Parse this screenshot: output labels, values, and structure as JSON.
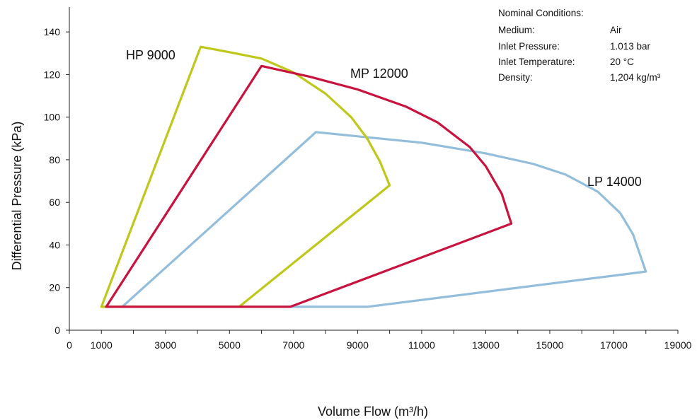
{
  "chart_data": {
    "type": "line",
    "title": "",
    "xlabel": "Volume Flow (m³/h)",
    "ylabel": "Differential Pressure (kPa)",
    "xlim": [
      0,
      19000
    ],
    "ylim": [
      0,
      150
    ],
    "xticks": [
      0,
      1000,
      3000,
      5000,
      7000,
      9000,
      11000,
      13000,
      15000,
      17000,
      19000
    ],
    "xminor": [
      2000,
      4000,
      6000,
      8000,
      10000,
      12000,
      14000,
      16000,
      18000
    ],
    "yticks": [
      0,
      20,
      40,
      60,
      80,
      100,
      120,
      140
    ],
    "grid": false,
    "series": [
      {
        "name": "HP 9000",
        "color": "#bfc81a",
        "points": [
          [
            1000,
            11
          ],
          [
            4100,
            133
          ],
          [
            5000,
            130.5
          ],
          [
            6000,
            127.5
          ],
          [
            7000,
            121
          ],
          [
            8000,
            111
          ],
          [
            8800,
            100
          ],
          [
            9300,
            90
          ],
          [
            9700,
            79
          ],
          [
            10000,
            68
          ],
          [
            5300,
            11
          ],
          [
            1000,
            11
          ]
        ]
      },
      {
        "name": "MP 12000",
        "color": "#c8133e",
        "points": [
          [
            1150,
            11
          ],
          [
            6000,
            124
          ],
          [
            7500,
            119
          ],
          [
            9000,
            113
          ],
          [
            10500,
            105
          ],
          [
            11500,
            97.5
          ],
          [
            12500,
            86
          ],
          [
            13000,
            77
          ],
          [
            13500,
            64
          ],
          [
            13800,
            50
          ],
          [
            6900,
            11
          ],
          [
            1150,
            11
          ]
        ]
      },
      {
        "name": "LP 14000",
        "color": "#92bedc",
        "points": [
          [
            1650,
            11
          ],
          [
            7700,
            93
          ],
          [
            9000,
            91
          ],
          [
            11000,
            88
          ],
          [
            13000,
            83
          ],
          [
            14500,
            78
          ],
          [
            15500,
            73
          ],
          [
            16500,
            65
          ],
          [
            17200,
            55
          ],
          [
            17600,
            45
          ],
          [
            18000,
            27.5
          ],
          [
            9300,
            11
          ],
          [
            1650,
            11
          ]
        ]
      }
    ]
  },
  "conditions": {
    "heading": "Nominal Conditions:",
    "rows": [
      {
        "label": "Medium:",
        "value": "Air"
      },
      {
        "label": "Inlet Pressure:",
        "value": "1.013 bar"
      },
      {
        "label": "Inlet Temperature:",
        "value": "20 °C"
      },
      {
        "label": "Density:",
        "value": "1,204 kg/m³"
      }
    ]
  }
}
